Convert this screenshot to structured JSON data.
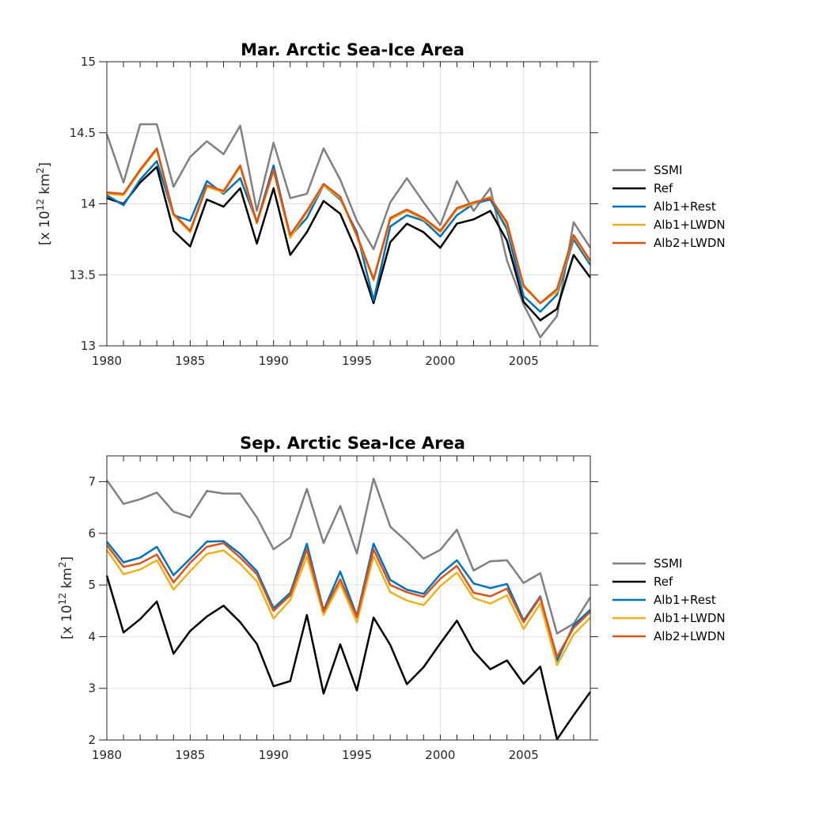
{
  "colors": {
    "SSMI": "#808080",
    "Ref": "#000000",
    "Alb1+Rest": "#0072bd",
    "Alb1+LWDN": "#edb120",
    "Alb2+LWDN": "#d95319"
  },
  "chart_data": [
    {
      "type": "line",
      "title": "Mar. Arctic Sea-Ice Area",
      "ylabel": "[x 10^12 km^2]",
      "ylabel_parts": {
        "prefix": "[x 10",
        "exp1": "12",
        "mid": " km",
        "exp2": "2",
        "suffix": "]"
      },
      "xlim": [
        1980,
        2009
      ],
      "ylim": [
        13,
        15
      ],
      "xticks": [
        1980,
        1985,
        1990,
        1995,
        2000,
        2005
      ],
      "xtick_labels": [
        "1980",
        "1985",
        "1990",
        "1995",
        "2000",
        "2005"
      ],
      "yticks": [
        13,
        13.5,
        14,
        14.5,
        15
      ],
      "ytick_labels": [
        "13",
        "13.5",
        "14",
        "14.5",
        "15"
      ],
      "grid": true,
      "legend_position": "right",
      "x": [
        1980,
        1981,
        1982,
        1983,
        1984,
        1985,
        1986,
        1987,
        1988,
        1989,
        1990,
        1991,
        1992,
        1993,
        1994,
        1995,
        1996,
        1997,
        1998,
        1999,
        2000,
        2001,
        2002,
        2003,
        2004,
        2005,
        2006,
        2007,
        2008,
        2009
      ],
      "series": [
        {
          "name": "SSMI",
          "values": [
            14.49,
            14.15,
            14.56,
            14.56,
            14.12,
            14.33,
            14.44,
            14.35,
            14.55,
            13.95,
            14.43,
            14.04,
            14.07,
            14.39,
            14.17,
            13.88,
            13.68,
            14.01,
            14.18,
            14.01,
            13.85,
            14.16,
            13.95,
            14.11,
            13.6,
            13.29,
            13.06,
            13.21,
            13.87,
            13.69
          ]
        },
        {
          "name": "Ref",
          "values": [
            14.04,
            14.0,
            14.15,
            14.26,
            13.81,
            13.7,
            14.03,
            13.98,
            14.11,
            13.72,
            14.11,
            13.64,
            13.8,
            14.02,
            13.93,
            13.66,
            13.3,
            13.73,
            13.86,
            13.8,
            13.69,
            13.86,
            13.89,
            13.95,
            13.74,
            13.31,
            13.18,
            13.26,
            13.64,
            13.48
          ]
        },
        {
          "name": "Alb1+Rest",
          "values": [
            14.06,
            13.99,
            14.17,
            14.3,
            13.92,
            13.88,
            14.16,
            14.07,
            14.18,
            13.87,
            14.27,
            13.77,
            13.9,
            14.13,
            14.03,
            13.8,
            13.32,
            13.84,
            13.92,
            13.88,
            13.77,
            13.92,
            14.0,
            14.03,
            13.82,
            13.35,
            13.24,
            13.36,
            13.75,
            13.57
          ]
        },
        {
          "name": "Alb1+LWDN",
          "values": [
            14.07,
            14.06,
            14.23,
            14.38,
            13.92,
            13.8,
            14.12,
            14.08,
            14.26,
            13.86,
            14.23,
            13.76,
            13.94,
            14.13,
            14.04,
            13.77,
            13.46,
            13.89,
            13.95,
            13.89,
            13.8,
            13.96,
            14.0,
            14.05,
            13.85,
            13.43,
            13.3,
            13.38,
            13.77,
            13.59
          ]
        },
        {
          "name": "Alb2+LWDN",
          "values": [
            14.08,
            14.07,
            14.24,
            14.39,
            13.93,
            13.81,
            14.13,
            14.09,
            14.27,
            13.87,
            14.24,
            13.78,
            13.95,
            14.14,
            14.05,
            13.78,
            13.47,
            13.9,
            13.96,
            13.9,
            13.81,
            13.97,
            14.01,
            14.04,
            13.87,
            13.42,
            13.3,
            13.4,
            13.78,
            13.6
          ]
        }
      ]
    },
    {
      "type": "line",
      "title": "Sep. Arctic Sea-Ice Area",
      "ylabel": "[x 10^12 km^2]",
      "ylabel_parts": {
        "prefix": "[x 10",
        "exp1": "12",
        "mid": " km",
        "exp2": "2",
        "suffix": "]"
      },
      "xlim": [
        1980,
        2009
      ],
      "ylim": [
        2,
        7.5
      ],
      "xticks": [
        1980,
        1985,
        1990,
        1995,
        2000,
        2005
      ],
      "xtick_labels": [
        "1980",
        "1985",
        "1990",
        "1995",
        "2000",
        "2005"
      ],
      "yticks": [
        2,
        3,
        4,
        5,
        6,
        7
      ],
      "ytick_labels": [
        "2",
        "3",
        "4",
        "5",
        "6",
        "7"
      ],
      "grid": true,
      "legend_position": "right",
      "x": [
        1980,
        1981,
        1982,
        1983,
        1984,
        1985,
        1986,
        1987,
        1988,
        1989,
        1990,
        1991,
        1992,
        1993,
        1994,
        1995,
        1996,
        1997,
        1998,
        1999,
        2000,
        2001,
        2002,
        2003,
        2004,
        2005,
        2006,
        2007,
        2008,
        2009
      ],
      "series": [
        {
          "name": "SSMI",
          "values": [
            7.03,
            6.57,
            6.66,
            6.79,
            6.42,
            6.31,
            6.82,
            6.77,
            6.77,
            6.31,
            5.69,
            5.92,
            6.86,
            5.81,
            6.53,
            5.61,
            7.06,
            6.13,
            5.84,
            5.51,
            5.68,
            6.07,
            5.28,
            5.46,
            5.48,
            5.04,
            5.23,
            4.06,
            4.25,
            4.76
          ]
        },
        {
          "name": "Ref",
          "values": [
            5.18,
            4.08,
            4.34,
            4.68,
            3.67,
            4.11,
            4.39,
            4.6,
            4.28,
            3.86,
            3.04,
            3.14,
            4.42,
            2.9,
            3.85,
            2.96,
            4.37,
            3.84,
            3.08,
            3.41,
            3.87,
            4.31,
            3.72,
            3.37,
            3.54,
            3.09,
            3.42,
            2.01,
            2.48,
            2.93
          ]
        },
        {
          "name": "Alb1+Rest",
          "values": [
            5.84,
            5.44,
            5.53,
            5.74,
            5.19,
            5.51,
            5.84,
            5.85,
            5.6,
            5.27,
            4.55,
            4.85,
            5.8,
            4.51,
            5.26,
            4.4,
            5.8,
            5.1,
            4.91,
            4.83,
            5.21,
            5.48,
            5.03,
            4.94,
            5.02,
            4.31,
            4.78,
            3.53,
            4.22,
            4.52
          ]
        },
        {
          "name": "Alb1+LWDN",
          "values": [
            5.68,
            5.21,
            5.3,
            5.48,
            4.91,
            5.27,
            5.6,
            5.67,
            5.41,
            5.07,
            4.35,
            4.71,
            5.55,
            4.42,
            5.03,
            4.28,
            5.56,
            4.86,
            4.7,
            4.61,
            4.98,
            5.24,
            4.75,
            4.64,
            4.8,
            4.15,
            4.64,
            3.45,
            4.04,
            4.37
          ]
        },
        {
          "name": "Alb2+LWDN",
          "values": [
            5.77,
            5.35,
            5.42,
            5.59,
            5.05,
            5.43,
            5.74,
            5.81,
            5.53,
            5.21,
            4.5,
            4.8,
            5.69,
            4.49,
            5.11,
            4.38,
            5.69,
            5.0,
            4.86,
            4.77,
            5.12,
            5.37,
            4.85,
            4.78,
            4.93,
            4.28,
            4.76,
            3.61,
            4.17,
            4.48
          ]
        }
      ]
    }
  ]
}
